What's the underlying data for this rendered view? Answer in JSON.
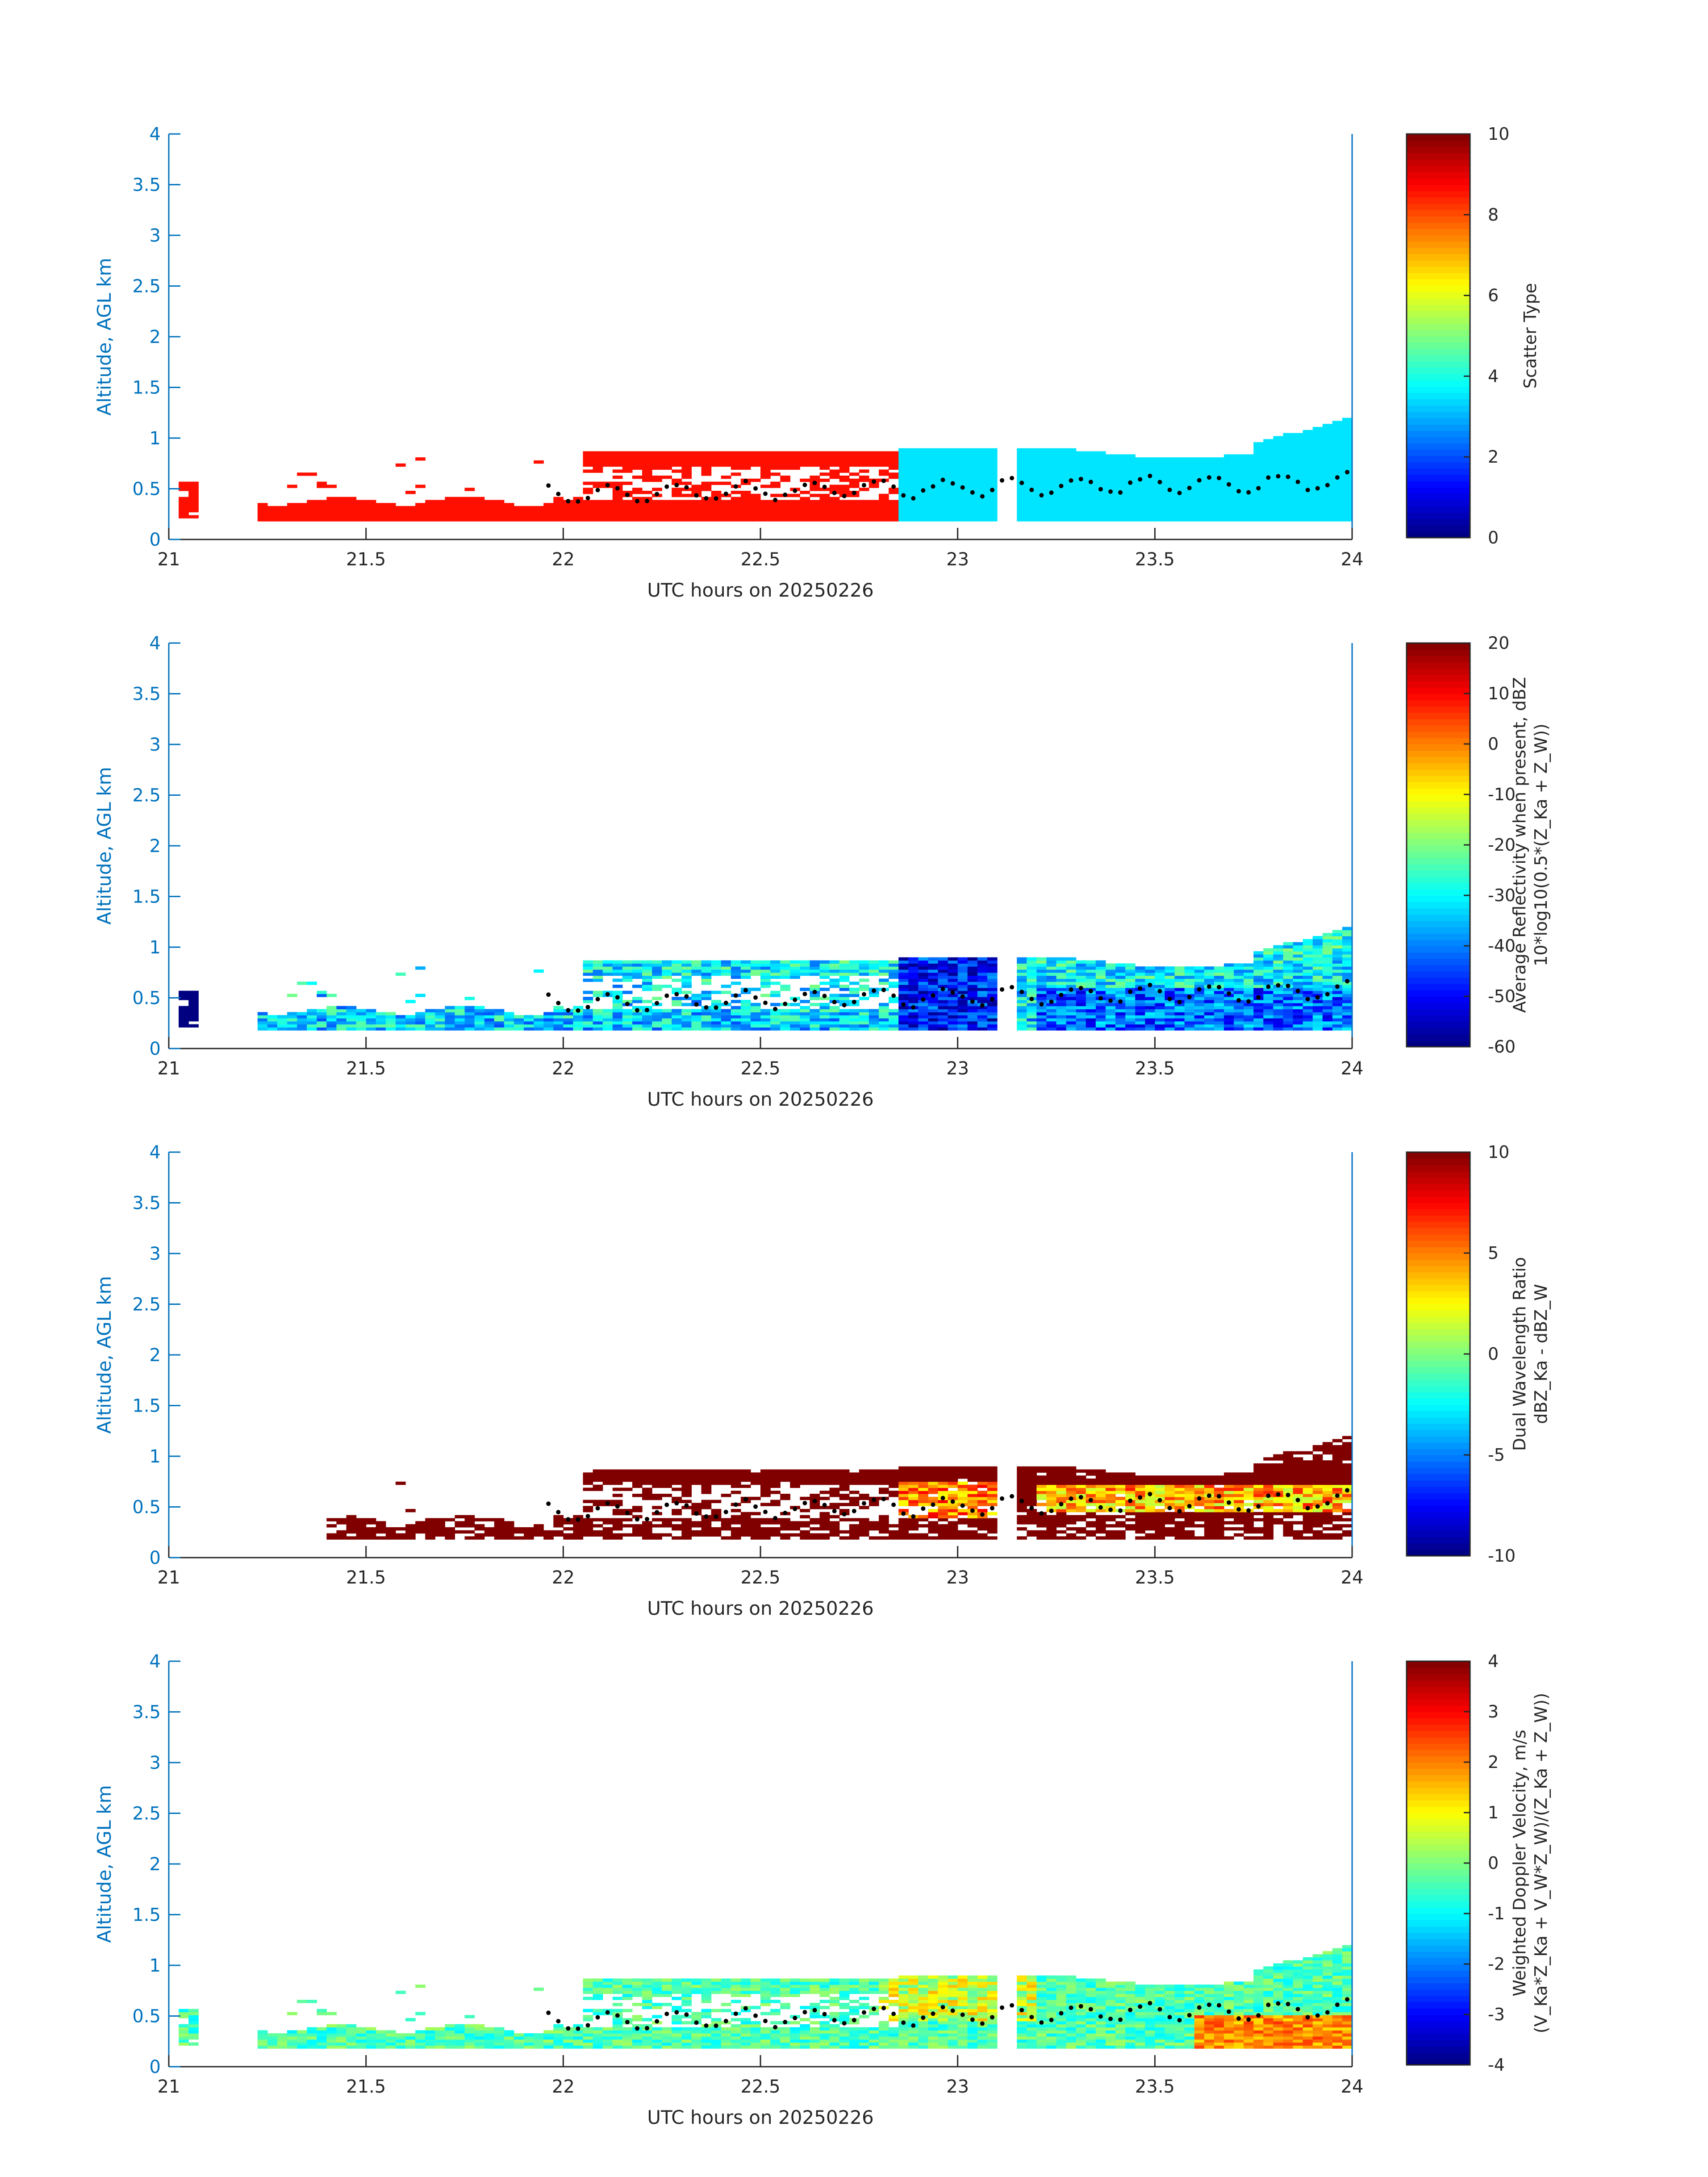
{
  "figure": {
    "date": "20250226",
    "colormap": "jet"
  },
  "chart_data": [
    {
      "type": "heatmap",
      "xlabel": "UTC hours on 20250226",
      "ylabel": "Altitude, AGL km",
      "xlim": [
        21,
        24
      ],
      "ylim": [
        0,
        4
      ],
      "xticks": [
        "21",
        "21.5",
        "22",
        "22.5",
        "23",
        "23.5",
        "24"
      ],
      "yticks": [
        "0",
        "0.5",
        "1",
        "1.5",
        "2",
        "2.5",
        "3",
        "3.5",
        "4"
      ],
      "colorbar": {
        "label_lines": [
          "Scatter Type"
        ],
        "clim": [
          0,
          10
        ],
        "ticks": [
          "0",
          "2",
          "4",
          "6",
          "8",
          "10"
        ]
      },
      "field": "scatter_type",
      "notes_visible": "two classes: ~8.5 (orange-red) up to 22.85 h, ~3.5 (cyan) after; black dots = cloud-base height"
    },
    {
      "type": "heatmap",
      "xlabel": "UTC hours on 20250226",
      "ylabel": "Altitude, AGL km",
      "xlim": [
        21,
        24
      ],
      "ylim": [
        0,
        4
      ],
      "xticks": [
        "21",
        "21.5",
        "22",
        "22.5",
        "23",
        "23.5",
        "24"
      ],
      "yticks": [
        "0",
        "0.5",
        "1",
        "1.5",
        "2",
        "2.5",
        "3",
        "3.5",
        "4"
      ],
      "colorbar": {
        "label_lines": [
          "Average Reflectivity when present, dBZ",
          "10*log10(0.5*(Z_Ka + Z_W))"
        ],
        "clim": [
          -60,
          20
        ],
        "ticks": [
          "-60",
          "-50",
          "-40",
          "-30",
          "-20",
          "-10",
          "0",
          "10",
          "20"
        ]
      },
      "field": "reflectivity"
    },
    {
      "type": "heatmap",
      "xlabel": "UTC hours on 20250226",
      "ylabel": "Altitude, AGL km",
      "xlim": [
        21,
        24
      ],
      "ylim": [
        0,
        4
      ],
      "xticks": [
        "21",
        "21.5",
        "22",
        "22.5",
        "23",
        "23.5",
        "24"
      ],
      "yticks": [
        "0",
        "0.5",
        "1",
        "1.5",
        "2",
        "2.5",
        "3",
        "3.5",
        "4"
      ],
      "colorbar": {
        "label_lines": [
          "Dual Wavelength Ratio",
          "dBZ_Ka - dBZ_W"
        ],
        "clim": [
          -10,
          10
        ],
        "ticks": [
          "-10",
          "-5",
          "0",
          "5",
          "10"
        ]
      },
      "field": "dwr"
    },
    {
      "type": "heatmap",
      "xlabel": "UTC hours on 20250226",
      "ylabel": "Altitude, AGL km",
      "xlim": [
        21,
        24
      ],
      "ylim": [
        0,
        4
      ],
      "xticks": [
        "21",
        "21.5",
        "22",
        "22.5",
        "23",
        "23.5",
        "24"
      ],
      "yticks": [
        "0",
        "0.5",
        "1",
        "1.5",
        "2",
        "2.5",
        "3",
        "3.5",
        "4"
      ],
      "colorbar": {
        "label_lines": [
          "Weighted Doppler Velocity, m/s",
          "(V_Ka*Z_Ka + V_W*Z_W)/(Z_Ka + Z_W))"
        ],
        "clim": [
          -4,
          4
        ],
        "ticks": [
          "-4",
          "-3",
          "-2",
          "-1",
          "0",
          "1",
          "2",
          "3",
          "4"
        ]
      },
      "field": "velocity"
    }
  ]
}
